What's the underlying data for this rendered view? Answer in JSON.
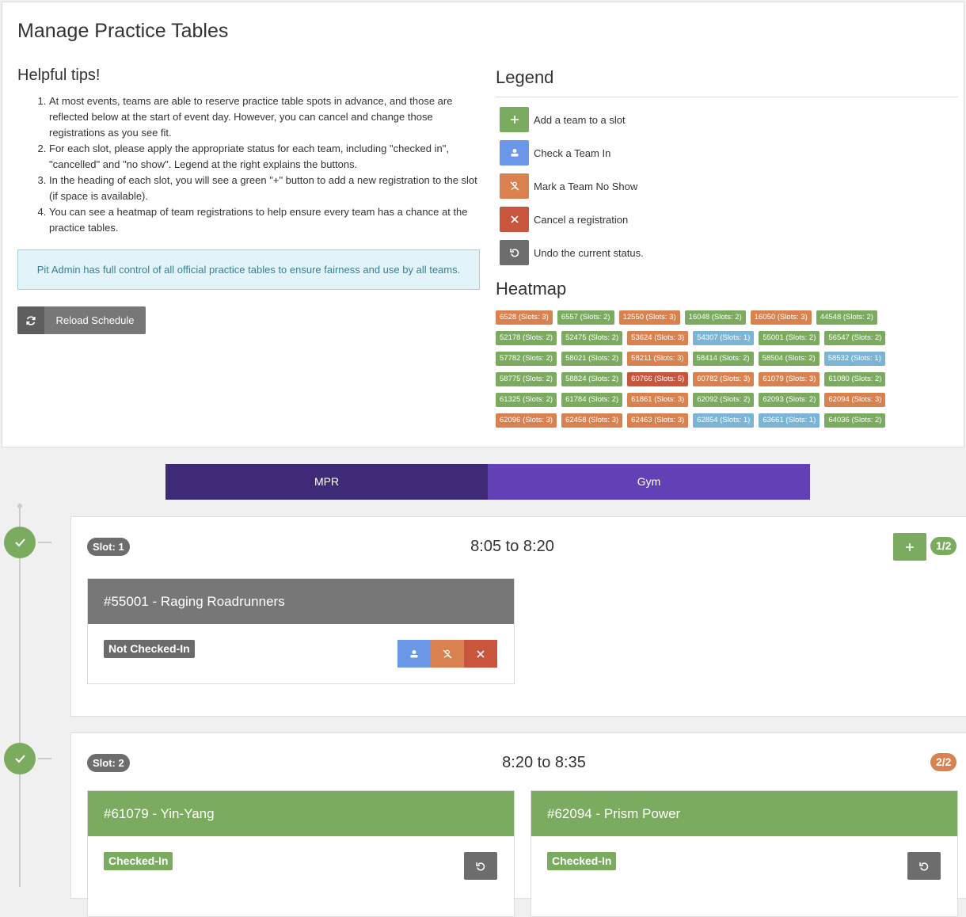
{
  "header": {
    "title": "Manage Practice Tables"
  },
  "tips": {
    "title": "Helpful tips!",
    "items": [
      "At most events, teams are able to reserve practice table spots in advance, and those are reflected below at the start of event day. However, you can cancel and change those registrations as you see fit.",
      "For each slot, please apply the appropriate status for each team, including \"checked in\", \"cancelled\" and \"no show\". Legend at the right explains the buttons.",
      "In the heading of each slot, you will see a green \"+\" button to add a new registration to the slot (if space is available).",
      "You can see a heatmap of team registrations to help ensure every team has a chance at the practice tables."
    ]
  },
  "info": "Pit Admin has full control of all official practice tables to ensure fairness and use by all teams.",
  "reload_button": "Reload Schedule",
  "legend": {
    "title": "Legend",
    "items": [
      {
        "label": "Add a team to a slot",
        "color": "#7aab5e"
      },
      {
        "label": "Check a Team In",
        "color": "#6a97e8"
      },
      {
        "label": "Mark a Team No Show",
        "color": "#d9824f"
      },
      {
        "label": "Cancel a registration",
        "color": "#c9553d"
      },
      {
        "label": "Undo the current status.",
        "color": "#6d6d6d"
      }
    ]
  },
  "heatmap": {
    "title": "Heatmap",
    "items": [
      {
        "label": "6528 (Slots: 3)",
        "color": "#d9824f"
      },
      {
        "label": "6557 (Slots: 2)",
        "color": "#7aab5e"
      },
      {
        "label": "12550 (Slots: 3)",
        "color": "#d9824f"
      },
      {
        "label": "16048 (Slots: 2)",
        "color": "#7aab5e"
      },
      {
        "label": "16050 (Slots: 3)",
        "color": "#d9824f"
      },
      {
        "label": "44548 (Slots: 2)",
        "color": "#7aab5e"
      },
      {
        "label": "52178 (Slots: 2)",
        "color": "#7aab5e"
      },
      {
        "label": "52475 (Slots: 2)",
        "color": "#7aab5e"
      },
      {
        "label": "53624 (Slots: 3)",
        "color": "#d9824f"
      },
      {
        "label": "54307 (Slots: 1)",
        "color": "#7ab5d6"
      },
      {
        "label": "55001 (Slots: 2)",
        "color": "#7aab5e"
      },
      {
        "label": "56547 (Slots: 2)",
        "color": "#7aab5e"
      },
      {
        "label": "57782 (Slots: 2)",
        "color": "#7aab5e"
      },
      {
        "label": "58021 (Slots: 2)",
        "color": "#7aab5e"
      },
      {
        "label": "58211 (Slots: 3)",
        "color": "#d9824f"
      },
      {
        "label": "58414 (Slots: 2)",
        "color": "#7aab5e"
      },
      {
        "label": "58504 (Slots: 2)",
        "color": "#7aab5e"
      },
      {
        "label": "58532 (Slots: 1)",
        "color": "#7ab5d6"
      },
      {
        "label": "58775 (Slots: 2)",
        "color": "#7aab5e"
      },
      {
        "label": "58824 (Slots: 2)",
        "color": "#7aab5e"
      },
      {
        "label": "60766 (Slots: 5)",
        "color": "#c9553d"
      },
      {
        "label": "60782 (Slots: 3)",
        "color": "#d9824f"
      },
      {
        "label": "61079 (Slots: 3)",
        "color": "#d9824f"
      },
      {
        "label": "61080 (Slots: 2)",
        "color": "#7aab5e"
      },
      {
        "label": "61325 (Slots: 2)",
        "color": "#7aab5e"
      },
      {
        "label": "61784 (Slots: 2)",
        "color": "#7aab5e"
      },
      {
        "label": "61861 (Slots: 3)",
        "color": "#d9824f"
      },
      {
        "label": "62092 (Slots: 2)",
        "color": "#7aab5e"
      },
      {
        "label": "62093 (Slots: 2)",
        "color": "#7aab5e"
      },
      {
        "label": "62094 (Slots: 3)",
        "color": "#d9824f"
      },
      {
        "label": "62096 (Slots: 3)",
        "color": "#d9824f"
      },
      {
        "label": "62458 (Slots: 3)",
        "color": "#d9824f"
      },
      {
        "label": "62463 (Slots: 3)",
        "color": "#d9824f"
      },
      {
        "label": "62854 (Slots: 1)",
        "color": "#7ab5d6"
      },
      {
        "label": "63661 (Slots: 1)",
        "color": "#7ab5d6"
      },
      {
        "label": "64036 (Slots: 2)",
        "color": "#7aab5e"
      }
    ]
  },
  "tabs": [
    "MPR",
    "Gym"
  ],
  "slots": [
    {
      "badge": "Slot: 1",
      "time": "8:05 to 8:20",
      "count": "1/2",
      "count_color": "#7aab5e",
      "teams": [
        {
          "name": "#55001 - Raging Roadrunners",
          "status": "Not Checked-In",
          "color": "#777777",
          "status_color": "#6b6b6b"
        }
      ]
    },
    {
      "badge": "Slot: 2",
      "time": "8:20 to 8:35",
      "count": "2/2",
      "count_color": "#d9824f",
      "teams": [
        {
          "name": "#61079 - Yin-Yang",
          "status": "Checked-In",
          "color": "#7aab5e",
          "status_color": "#7aab5e"
        },
        {
          "name": "#62094 - Prism Power",
          "status": "Checked-In",
          "color": "#7aab5e",
          "status_color": "#7aab5e"
        }
      ]
    }
  ]
}
